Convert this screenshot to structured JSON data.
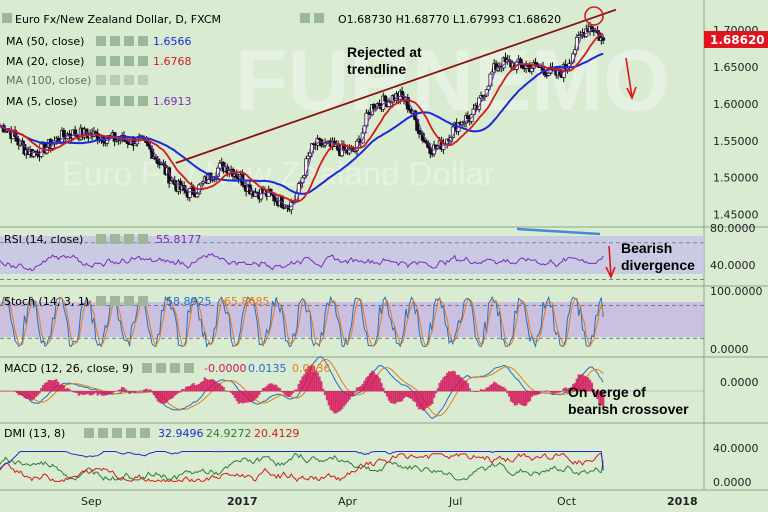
{
  "header": {
    "title": "Euro Fx/New Zealand Dollar, D, FXCM",
    "ohlc": "O1.68730 H1.68770 L1.67993 C1.68620"
  },
  "watermark": {
    "big": "FURNEMO",
    "sub": "Euro Fx / New Zealand Dollar"
  },
  "colors": {
    "bg": "#d9ecd2",
    "up": "#1a1a1a",
    "down": "#1a1a1a",
    "ma50": "#1a2bd6",
    "ma20": "#d41b1b",
    "ma5": "#7a2cb8",
    "trendline": "#8b1010",
    "rsiBand": "#c6c6e6",
    "stochBand": "#c9b9e3",
    "price_tag": "#e0141c"
  },
  "price_tag": "1.68620",
  "indicators": {
    "ma50": {
      "label": "MA (50, close)",
      "value": "1.6566"
    },
    "ma20": {
      "label": "MA (20, close)",
      "value": "1.6768"
    },
    "ma100": {
      "label": "MA (100, close)",
      "value": ""
    },
    "ma5": {
      "label": "MA (5, close)",
      "value": "1.6913"
    },
    "rsi": {
      "label": "RSI (14, close)",
      "value": "55.8177"
    },
    "stoch": {
      "label": "Stoch (14, 3, 1)",
      "k": "58.8925",
      "d": "65.8685"
    },
    "macd": {
      "label": "MACD (12, 26, close, 9)",
      "hist": "-0.0000",
      "macd": "0.0135",
      "signal": "0.0136"
    },
    "dmi": {
      "label": "DMI (13, 8)",
      "plus": "32.9496",
      "minus": "24.9272",
      "adx": "20.4129"
    }
  },
  "annotations": {
    "rejected": [
      "Rejected at",
      "trendline"
    ],
    "bearish": [
      "Bearish",
      "divergence"
    ],
    "verge": [
      "On verge of",
      "bearish crossover"
    ]
  },
  "axes": {
    "price_ticks": [
      "1.70000",
      "1.65000",
      "1.60000",
      "1.55000",
      "1.50000",
      "1.45000"
    ],
    "rsi_ticks": [
      "80.0000",
      "40.0000"
    ],
    "stoch_ticks": [
      "100.0000",
      "0.0000"
    ],
    "macd_ticks": [
      "0.0000"
    ],
    "dmi_ticks": [
      "40.0000",
      "0.0000"
    ],
    "date_ticks": [
      "Sep",
      "2017",
      "Apr",
      "Jul",
      "Oct",
      "2018"
    ]
  },
  "chart_data": [
    {
      "type": "candlestick",
      "title": "Euro Fx/New Zealand Dollar, D, FXCM",
      "ylim": [
        1.44,
        1.73
      ],
      "x_range": [
        "2016-08-01",
        "2017-10-25"
      ],
      "anchors": [
        {
          "date": "2016-08-01",
          "close": 1.57
        },
        {
          "date": "2016-08-25",
          "close": 1.535
        },
        {
          "date": "2016-09-25",
          "close": 1.56
        },
        {
          "date": "2016-11-10",
          "close": 1.55
        },
        {
          "date": "2016-12-20",
          "close": 1.48
        },
        {
          "date": "2017-01-15",
          "close": 1.515
        },
        {
          "date": "2017-02-10",
          "close": 1.48
        },
        {
          "date": "2017-03-05",
          "close": 1.465
        },
        {
          "date": "2017-03-25",
          "close": 1.545
        },
        {
          "date": "2017-04-20",
          "close": 1.535
        },
        {
          "date": "2017-05-08",
          "close": 1.6
        },
        {
          "date": "2017-05-25",
          "close": 1.61
        },
        {
          "date": "2017-06-20",
          "close": 1.54
        },
        {
          "date": "2017-07-15",
          "close": 1.58
        },
        {
          "date": "2017-08-10",
          "close": 1.655
        },
        {
          "date": "2017-09-05",
          "close": 1.65
        },
        {
          "date": "2017-09-20",
          "close": 1.64
        },
        {
          "date": "2017-10-15",
          "close": 1.705
        },
        {
          "date": "2017-10-25",
          "close": 1.6862
        }
      ],
      "series": [
        {
          "name": "MA (50, close)",
          "last": 1.6566
        },
        {
          "name": "MA (20, close)",
          "last": 1.6768
        },
        {
          "name": "MA (5, close)",
          "last": 1.6913
        }
      ],
      "trendline": [
        {
          "date": "2016-12-10",
          "value": 1.52
        },
        {
          "date": "2017-10-25",
          "value": 1.725
        }
      ]
    },
    {
      "type": "line",
      "title": "RSI (14, close)",
      "ylim": [
        25,
        85
      ],
      "last": 55.8177,
      "guides": [
        30,
        70
      ]
    },
    {
      "type": "line",
      "title": "Stoch (14, 3, 1)",
      "ylim": [
        -5,
        110
      ],
      "k_last": 58.8925,
      "d_last": 65.8685,
      "guides": [
        20,
        80
      ]
    },
    {
      "type": "line",
      "title": "MACD (12, 26, close, 9)",
      "ylim": [
        -0.03,
        0.03
      ],
      "macd_last": 0.0135,
      "signal_last": 0.0136,
      "hist_last": -0.0
    },
    {
      "type": "line",
      "title": "DMI (13, 8)",
      "ylim": [
        0,
        60
      ],
      "plus_di_last": 32.9496,
      "minus_di_last": 24.9272,
      "adx_last": 20.4129
    }
  ]
}
